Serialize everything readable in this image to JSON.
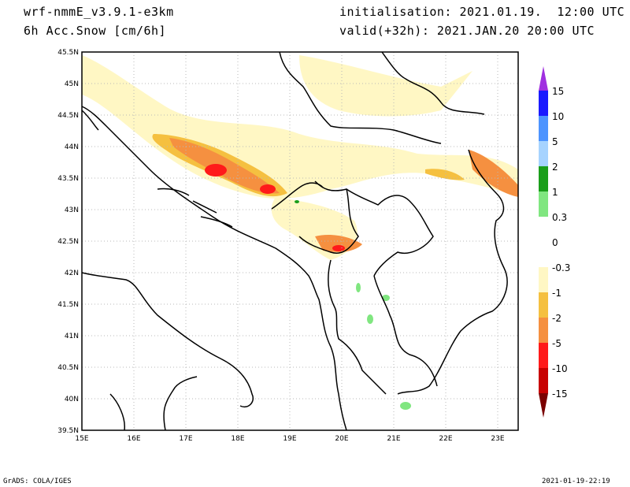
{
  "header": {
    "model": "wrf-nmmE_v3.9.1-e3km",
    "field": "6h Acc.Snow [cm/6h]",
    "init": "initialisation: 2021.01.19.  12:00 UTC",
    "valid": "valid(+32h): 2021.JAN.20 20:00 UTC"
  },
  "map": {
    "lat_labels": [
      "45.5N",
      "45N",
      "44.5N",
      "44N",
      "43.5N",
      "43N",
      "42.5N",
      "42N",
      "41.5N",
      "41N",
      "40.5N",
      "40N",
      "39.5N"
    ],
    "lon_labels": [
      "15E",
      "16E",
      "17E",
      "18E",
      "19E",
      "20E",
      "21E",
      "22E",
      "23E"
    ]
  },
  "legend": {
    "labels": [
      "15",
      "10",
      "5",
      "2",
      "1",
      "0.3",
      "0",
      "-0.3",
      "-1",
      "-2",
      "-5",
      "-10",
      "-15"
    ],
    "colors": [
      "#1a1aff",
      "#4d94ff",
      "#a6d3ff",
      "#1a9e1a",
      "#80e680",
      "#ffffff",
      "#ffffff",
      "#fff7c4",
      "#f5c040",
      "#f59040",
      "#ff1a1a",
      "#c80000",
      "#8c0000"
    ],
    "top_arrow_color": "#a030e0",
    "bottom_arrow_color": "#7a0000"
  },
  "footer": {
    "left": "GrADS: COLA/IGES",
    "right": "2021-01-19-22:19"
  }
}
